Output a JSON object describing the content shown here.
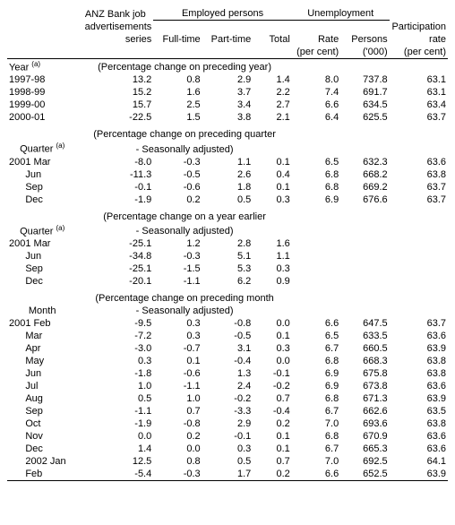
{
  "headers": {
    "anz1": "ANZ Bank job",
    "anz2": "advertisements",
    "anz3": "series",
    "emp_group": "Employed persons",
    "emp_ft": "Full-time",
    "emp_pt": "Part-time",
    "emp_total": "Total",
    "unemp_group": "Unemployment",
    "unemp_rate": "Rate",
    "unemp_rate_u": "(per cent)",
    "unemp_pers": "Persons",
    "unemp_pers_u": "('000)",
    "part1": "Participation",
    "part2": "rate",
    "part_u": "(per cent)"
  },
  "row_labels": {
    "year": "Year",
    "quarter": "Quarter",
    "month": "Month",
    "note": "(a)"
  },
  "sections": {
    "s1": "(Percentage change on preceding year)",
    "s2a": "(Percentage change on preceding quarter",
    "s2b": "- Seasonally adjusted)",
    "s3a": "(Percentage change on a year earlier",
    "s3b": "- Seasonally adjusted)",
    "s4a": "(Percentage change on preceding month",
    "s4b": "- Seasonally adjusted)"
  },
  "years": [
    {
      "label": "1997-98",
      "anz": "13.2",
      "ft": "0.8",
      "pt": "2.9",
      "tot": "1.4",
      "rate": "8.0",
      "pers": "737.8",
      "part": "63.1"
    },
    {
      "label": "1998-99",
      "anz": "15.2",
      "ft": "1.6",
      "pt": "3.7",
      "tot": "2.2",
      "rate": "7.4",
      "pers": "691.7",
      "part": "63.1"
    },
    {
      "label": "1999-00",
      "anz": "15.7",
      "ft": "2.5",
      "pt": "3.4",
      "tot": "2.7",
      "rate": "6.6",
      "pers": "634.5",
      "part": "63.4"
    },
    {
      "label": "2000-01",
      "anz": "-22.5",
      "ft": "1.5",
      "pt": "3.8",
      "tot": "2.1",
      "rate": "6.4",
      "pers": "625.5",
      "part": "63.7"
    }
  ],
  "q_pq": [
    {
      "label": "2001 Mar",
      "anz": "-8.0",
      "ft": "-0.3",
      "pt": "1.1",
      "tot": "0.1",
      "rate": "6.5",
      "pers": "632.3",
      "part": "63.6"
    },
    {
      "label": "Jun",
      "anz": "-11.3",
      "ft": "-0.5",
      "pt": "2.6",
      "tot": "0.4",
      "rate": "6.8",
      "pers": "668.2",
      "part": "63.8"
    },
    {
      "label": "Sep",
      "anz": "-0.1",
      "ft": "-0.6",
      "pt": "1.8",
      "tot": "0.1",
      "rate": "6.8",
      "pers": "669.2",
      "part": "63.7"
    },
    {
      "label": "Dec",
      "anz": "-1.9",
      "ft": "0.2",
      "pt": "0.5",
      "tot": "0.3",
      "rate": "6.9",
      "pers": "676.6",
      "part": "63.7"
    }
  ],
  "q_ye": [
    {
      "label": "2001 Mar",
      "anz": "-25.1",
      "ft": "1.2",
      "pt": "2.8",
      "tot": "1.6",
      "rate": "",
      "pers": "",
      "part": ""
    },
    {
      "label": "Jun",
      "anz": "-34.8",
      "ft": "-0.3",
      "pt": "5.1",
      "tot": "1.1",
      "rate": "",
      "pers": "",
      "part": ""
    },
    {
      "label": "Sep",
      "anz": "-25.1",
      "ft": "-1.5",
      "pt": "5.3",
      "tot": "0.3",
      "rate": "",
      "pers": "",
      "part": ""
    },
    {
      "label": "Dec",
      "anz": "-20.1",
      "ft": "-1.1",
      "pt": "6.2",
      "tot": "0.9",
      "rate": "",
      "pers": "",
      "part": ""
    }
  ],
  "months": [
    {
      "label": "2001 Feb",
      "anz": "-9.5",
      "ft": "0.3",
      "pt": "-0.8",
      "tot": "0.0",
      "rate": "6.6",
      "pers": "647.5",
      "part": "63.7"
    },
    {
      "label": "Mar",
      "anz": "-7.2",
      "ft": "0.3",
      "pt": "-0.5",
      "tot": "0.1",
      "rate": "6.5",
      "pers": "633.5",
      "part": "63.6"
    },
    {
      "label": "Apr",
      "anz": "-3.0",
      "ft": "-0.7",
      "pt": "3.1",
      "tot": "0.3",
      "rate": "6.7",
      "pers": "660.5",
      "part": "63.9"
    },
    {
      "label": "May",
      "anz": "0.3",
      "ft": "0.1",
      "pt": "-0.4",
      "tot": "0.0",
      "rate": "6.8",
      "pers": "668.3",
      "part": "63.8"
    },
    {
      "label": "Jun",
      "anz": "-1.8",
      "ft": "-0.6",
      "pt": "1.3",
      "tot": "-0.1",
      "rate": "6.9",
      "pers": "675.8",
      "part": "63.8"
    },
    {
      "label": "Jul",
      "anz": "1.0",
      "ft": "-1.1",
      "pt": "2.4",
      "tot": "-0.2",
      "rate": "6.9",
      "pers": "673.8",
      "part": "63.6"
    },
    {
      "label": "Aug",
      "anz": "0.5",
      "ft": "1.0",
      "pt": "-0.2",
      "tot": "0.7",
      "rate": "6.8",
      "pers": "671.3",
      "part": "63.9"
    },
    {
      "label": "Sep",
      "anz": "-1.1",
      "ft": "0.7",
      "pt": "-3.3",
      "tot": "-0.4",
      "rate": "6.7",
      "pers": "662.6",
      "part": "63.5"
    },
    {
      "label": "Oct",
      "anz": "-1.9",
      "ft": "-0.8",
      "pt": "2.9",
      "tot": "0.2",
      "rate": "7.0",
      "pers": "693.6",
      "part": "63.8"
    },
    {
      "label": "Nov",
      "anz": "0.0",
      "ft": "0.2",
      "pt": "-0.1",
      "tot": "0.1",
      "rate": "6.8",
      "pers": "670.9",
      "part": "63.6"
    },
    {
      "label": "Dec",
      "anz": "1.4",
      "ft": "0.0",
      "pt": "0.3",
      "tot": "0.1",
      "rate": "6.7",
      "pers": "665.3",
      "part": "63.6"
    },
    {
      "label": "2002 Jan",
      "anz": "12.5",
      "ft": "0.8",
      "pt": "0.5",
      "tot": "0.7",
      "rate": "7.0",
      "pers": "692.5",
      "part": "64.1"
    },
    {
      "label": "Feb",
      "anz": "-5.4",
      "ft": "-0.3",
      "pt": "1.7",
      "tot": "0.2",
      "rate": "6.6",
      "pers": "652.5",
      "part": "63.9"
    }
  ],
  "style": {
    "font_family": "Arial",
    "font_size_pt": 8,
    "text_color": "#000000",
    "bg_color": "#ffffff",
    "rule_color": "#000000"
  }
}
